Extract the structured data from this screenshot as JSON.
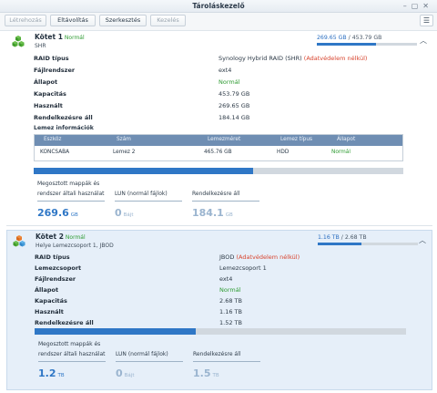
{
  "window": {
    "title": "Tároláskezelő"
  },
  "toolbar": {
    "create": "Létrehozás",
    "remove": "Eltávolítás",
    "edit": "Szerkesztés",
    "manage": "Kezelés"
  },
  "volume1": {
    "name": "Kötet 1",
    "status": "Normál",
    "subtitle": "SHR",
    "usage_used": "269.65 GB",
    "usage_sep": " / ",
    "usage_total": "453.79 GB",
    "usage_fraction": 0.594,
    "fields": [
      {
        "label": "RAID típus",
        "value": "Synology Hybrid RAID (SHR)",
        "note": " (Adatvédelem nélkül)"
      },
      {
        "label": "Fájlrendszer",
        "value": "ext4"
      },
      {
        "label": "Állapot",
        "value": "Normál"
      },
      {
        "label": "Kapacitás",
        "value": "453.79 GB"
      },
      {
        "label": "Használt",
        "value": "269.65 GB"
      },
      {
        "label": "Rendelkezésre áll",
        "value": "184.14 GB"
      }
    ],
    "disk_info_title": "Lemez információk",
    "table": {
      "headers": [
        "Eszköz",
        "Szám",
        "Lemezméret",
        "Lemez típus",
        "Állapot"
      ],
      "row": [
        "KONCSABA",
        "Lemez 2",
        "465.76 GB",
        "HDD",
        "Normál"
      ]
    },
    "bar_fraction": 0.594,
    "stats": {
      "shared_label_1": "Megosztott mappák és",
      "shared_label_2": "rendszer általi használat",
      "shared_value": "269.6",
      "shared_unit": "GB",
      "lun_label": "LUN (normál fájlok)",
      "lun_value": "0",
      "lun_unit": "Bájt",
      "avail_label": "Rendelkezésre áll",
      "avail_value": "184.1",
      "avail_unit": "GB"
    }
  },
  "volume2": {
    "name": "Kötet 2",
    "status": "Normál",
    "subtitle": "Helye Lemezcsoport 1, JBOD",
    "usage_used": "1.16 TB",
    "usage_sep": " / ",
    "usage_total": "2.68 TB",
    "usage_fraction": 0.433,
    "fields": [
      {
        "label": "RAID típus",
        "value": "JBOD",
        "note": " (Adatvédelem nélkül)"
      },
      {
        "label": "Lemezcsoport",
        "value": "Lemezcsoport 1"
      },
      {
        "label": "Fájlrendszer",
        "value": "ext4"
      },
      {
        "label": "Állapot",
        "value": "Normál"
      },
      {
        "label": "Kapacitás",
        "value": "2.68 TB"
      },
      {
        "label": "Használt",
        "value": "1.16 TB"
      },
      {
        "label": "Rendelkezésre áll",
        "value": "1.52 TB"
      }
    ],
    "bar_fraction": 0.433,
    "stats": {
      "shared_label_1": "Megosztott mappák és",
      "shared_label_2": "rendszer általi használat",
      "shared_value": "1.2",
      "shared_unit": "TB",
      "lun_label": "LUN (normál fájlok)",
      "lun_value": "0",
      "lun_unit": "Bájt",
      "avail_label": "Rendelkezésre áll",
      "avail_value": "1.5",
      "avail_unit": "TB"
    }
  },
  "colors": {
    "accent": "#2f77c6",
    "normal": "#2e9b32",
    "warning": "#d8452f",
    "selected_bg": "#e6eff9"
  },
  "icons": {
    "volume": "volume-cube-icon",
    "collapse": "chevron-up-icon",
    "view": "list-view-icon"
  }
}
